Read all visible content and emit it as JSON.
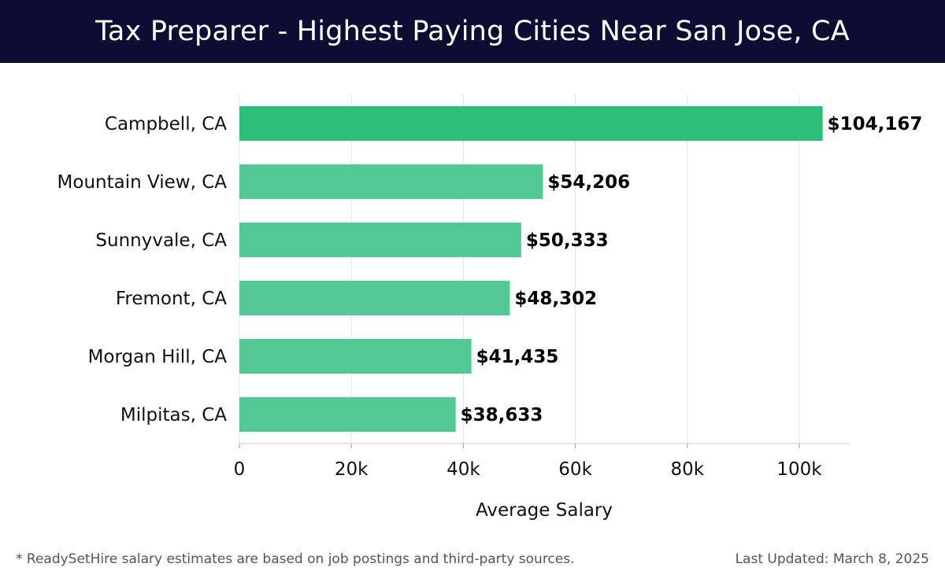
{
  "header": {
    "title": "Tax Preparer - Highest Paying Cities Near San Jose, CA"
  },
  "chart_data": {
    "type": "bar",
    "orientation": "horizontal",
    "title": "Tax Preparer - Highest Paying Cities Near San Jose, CA",
    "xlabel": "Average Salary",
    "ylabel": "",
    "xlim": [
      0,
      109000
    ],
    "grid": true,
    "categories": [
      "Campbell, CA",
      "Mountain View, CA",
      "Sunnyvale, CA",
      "Fremont, CA",
      "Morgan Hill, CA",
      "Milpitas, CA"
    ],
    "values": [
      104167,
      54206,
      50333,
      48302,
      41435,
      38633
    ],
    "value_labels": [
      "$104,167",
      "$54,206",
      "$50,333",
      "$48,302",
      "$41,435",
      "$38,633"
    ],
    "x_ticks": [
      0,
      20000,
      40000,
      60000,
      80000,
      100000
    ],
    "x_tick_labels": [
      "0",
      "20k",
      "40k",
      "60k",
      "80k",
      "100k"
    ],
    "colors": {
      "highlight": "#2bbf78",
      "bar": "#52c994",
      "grid": "#e3e3e3",
      "axis": "#cccccc"
    }
  },
  "footer": {
    "note": "* ReadySetHire salary estimates are based on job postings and third-party sources.",
    "updated": "Last Updated: March 8, 2025"
  }
}
